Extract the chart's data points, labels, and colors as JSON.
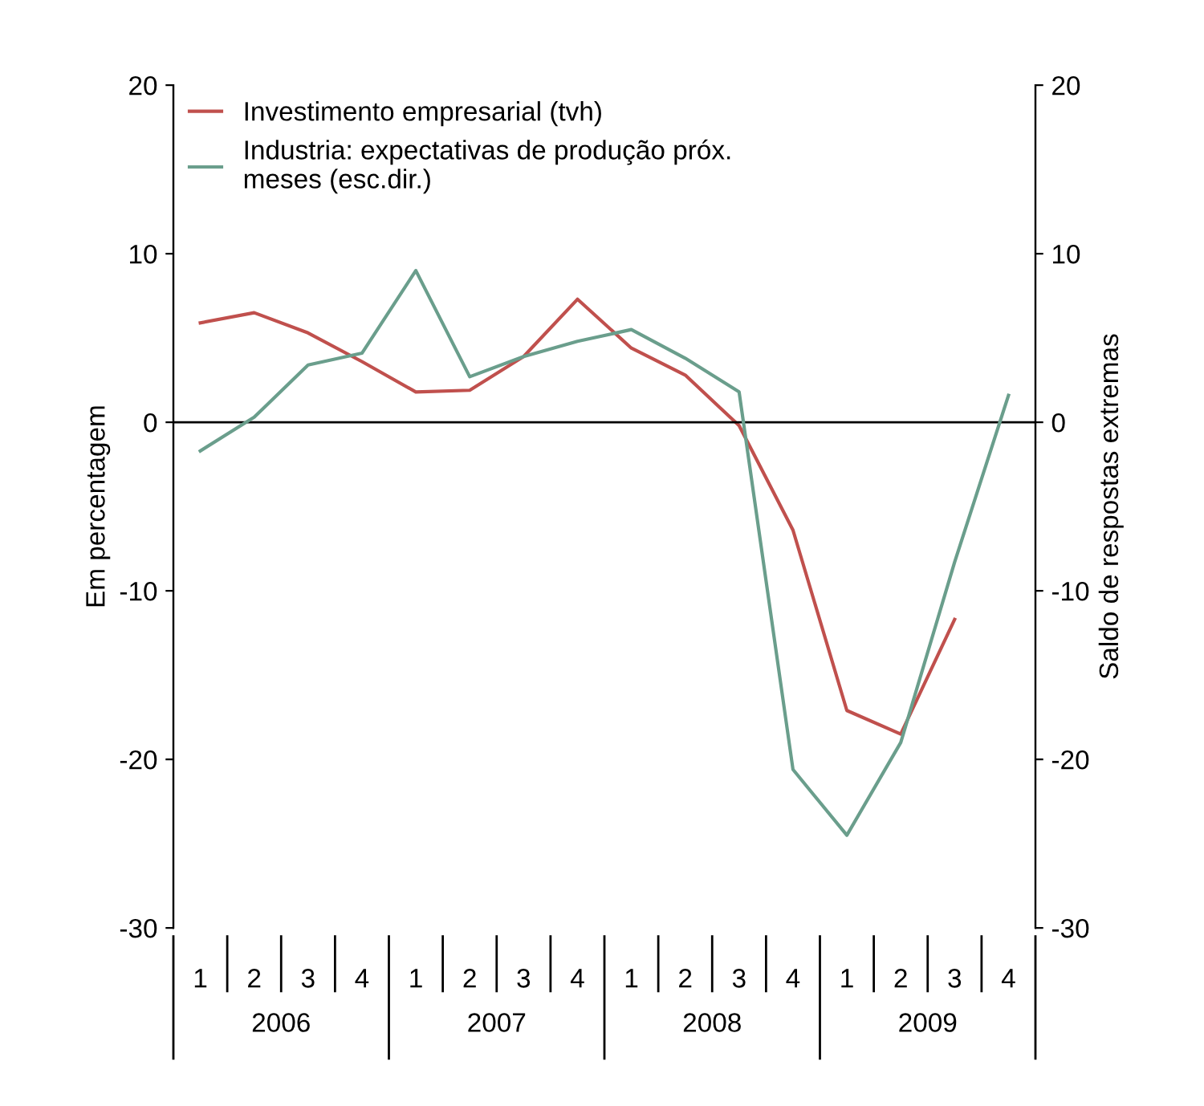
{
  "chart_data": {
    "type": "line",
    "ylabel": "Em percentagem",
    "y2label": "Saldo de respostas extremas",
    "categories": [
      "1",
      "2",
      "3",
      "4",
      "1",
      "2",
      "3",
      "4",
      "1",
      "2",
      "3",
      "4",
      "1",
      "2",
      "3",
      "4"
    ],
    "annotations": [
      "2006",
      "2007",
      "2008",
      "2009"
    ],
    "series": [
      {
        "name": "Investimento empresarial (tvh)",
        "color": "#c0504d",
        "values": [
          5.9,
          6.5,
          5.3,
          3.6,
          1.8,
          1.9,
          3.9,
          7.3,
          4.4,
          2.8,
          -0.2,
          -6.4,
          -17.1,
          -18.5,
          -11.7,
          null
        ]
      },
      {
        "name": "Industria: expectativas de produção próx.\nmeses (esc.dir.)",
        "color": "#6a9e8c",
        "axis": "y2",
        "values": [
          -1.7,
          0.3,
          3.4,
          4.1,
          9.0,
          2.7,
          3.9,
          4.8,
          5.5,
          3.8,
          1.8,
          -20.6,
          -24.5,
          -19.0,
          -8.3,
          1.6
        ]
      }
    ],
    "ylim": [
      -30,
      20
    ],
    "yticks": [
      -30,
      -20,
      -10,
      0,
      10,
      20
    ],
    "y2lim": [
      -30,
      20
    ],
    "y2ticks": [
      -30,
      -20,
      -10,
      0,
      10,
      20
    ],
    "ref_lines": [
      {
        "axis": "y",
        "value": 0,
        "color": "#000000"
      }
    ],
    "grid": false,
    "legend": "top left",
    "marker": "none",
    "line_style": "solid"
  }
}
